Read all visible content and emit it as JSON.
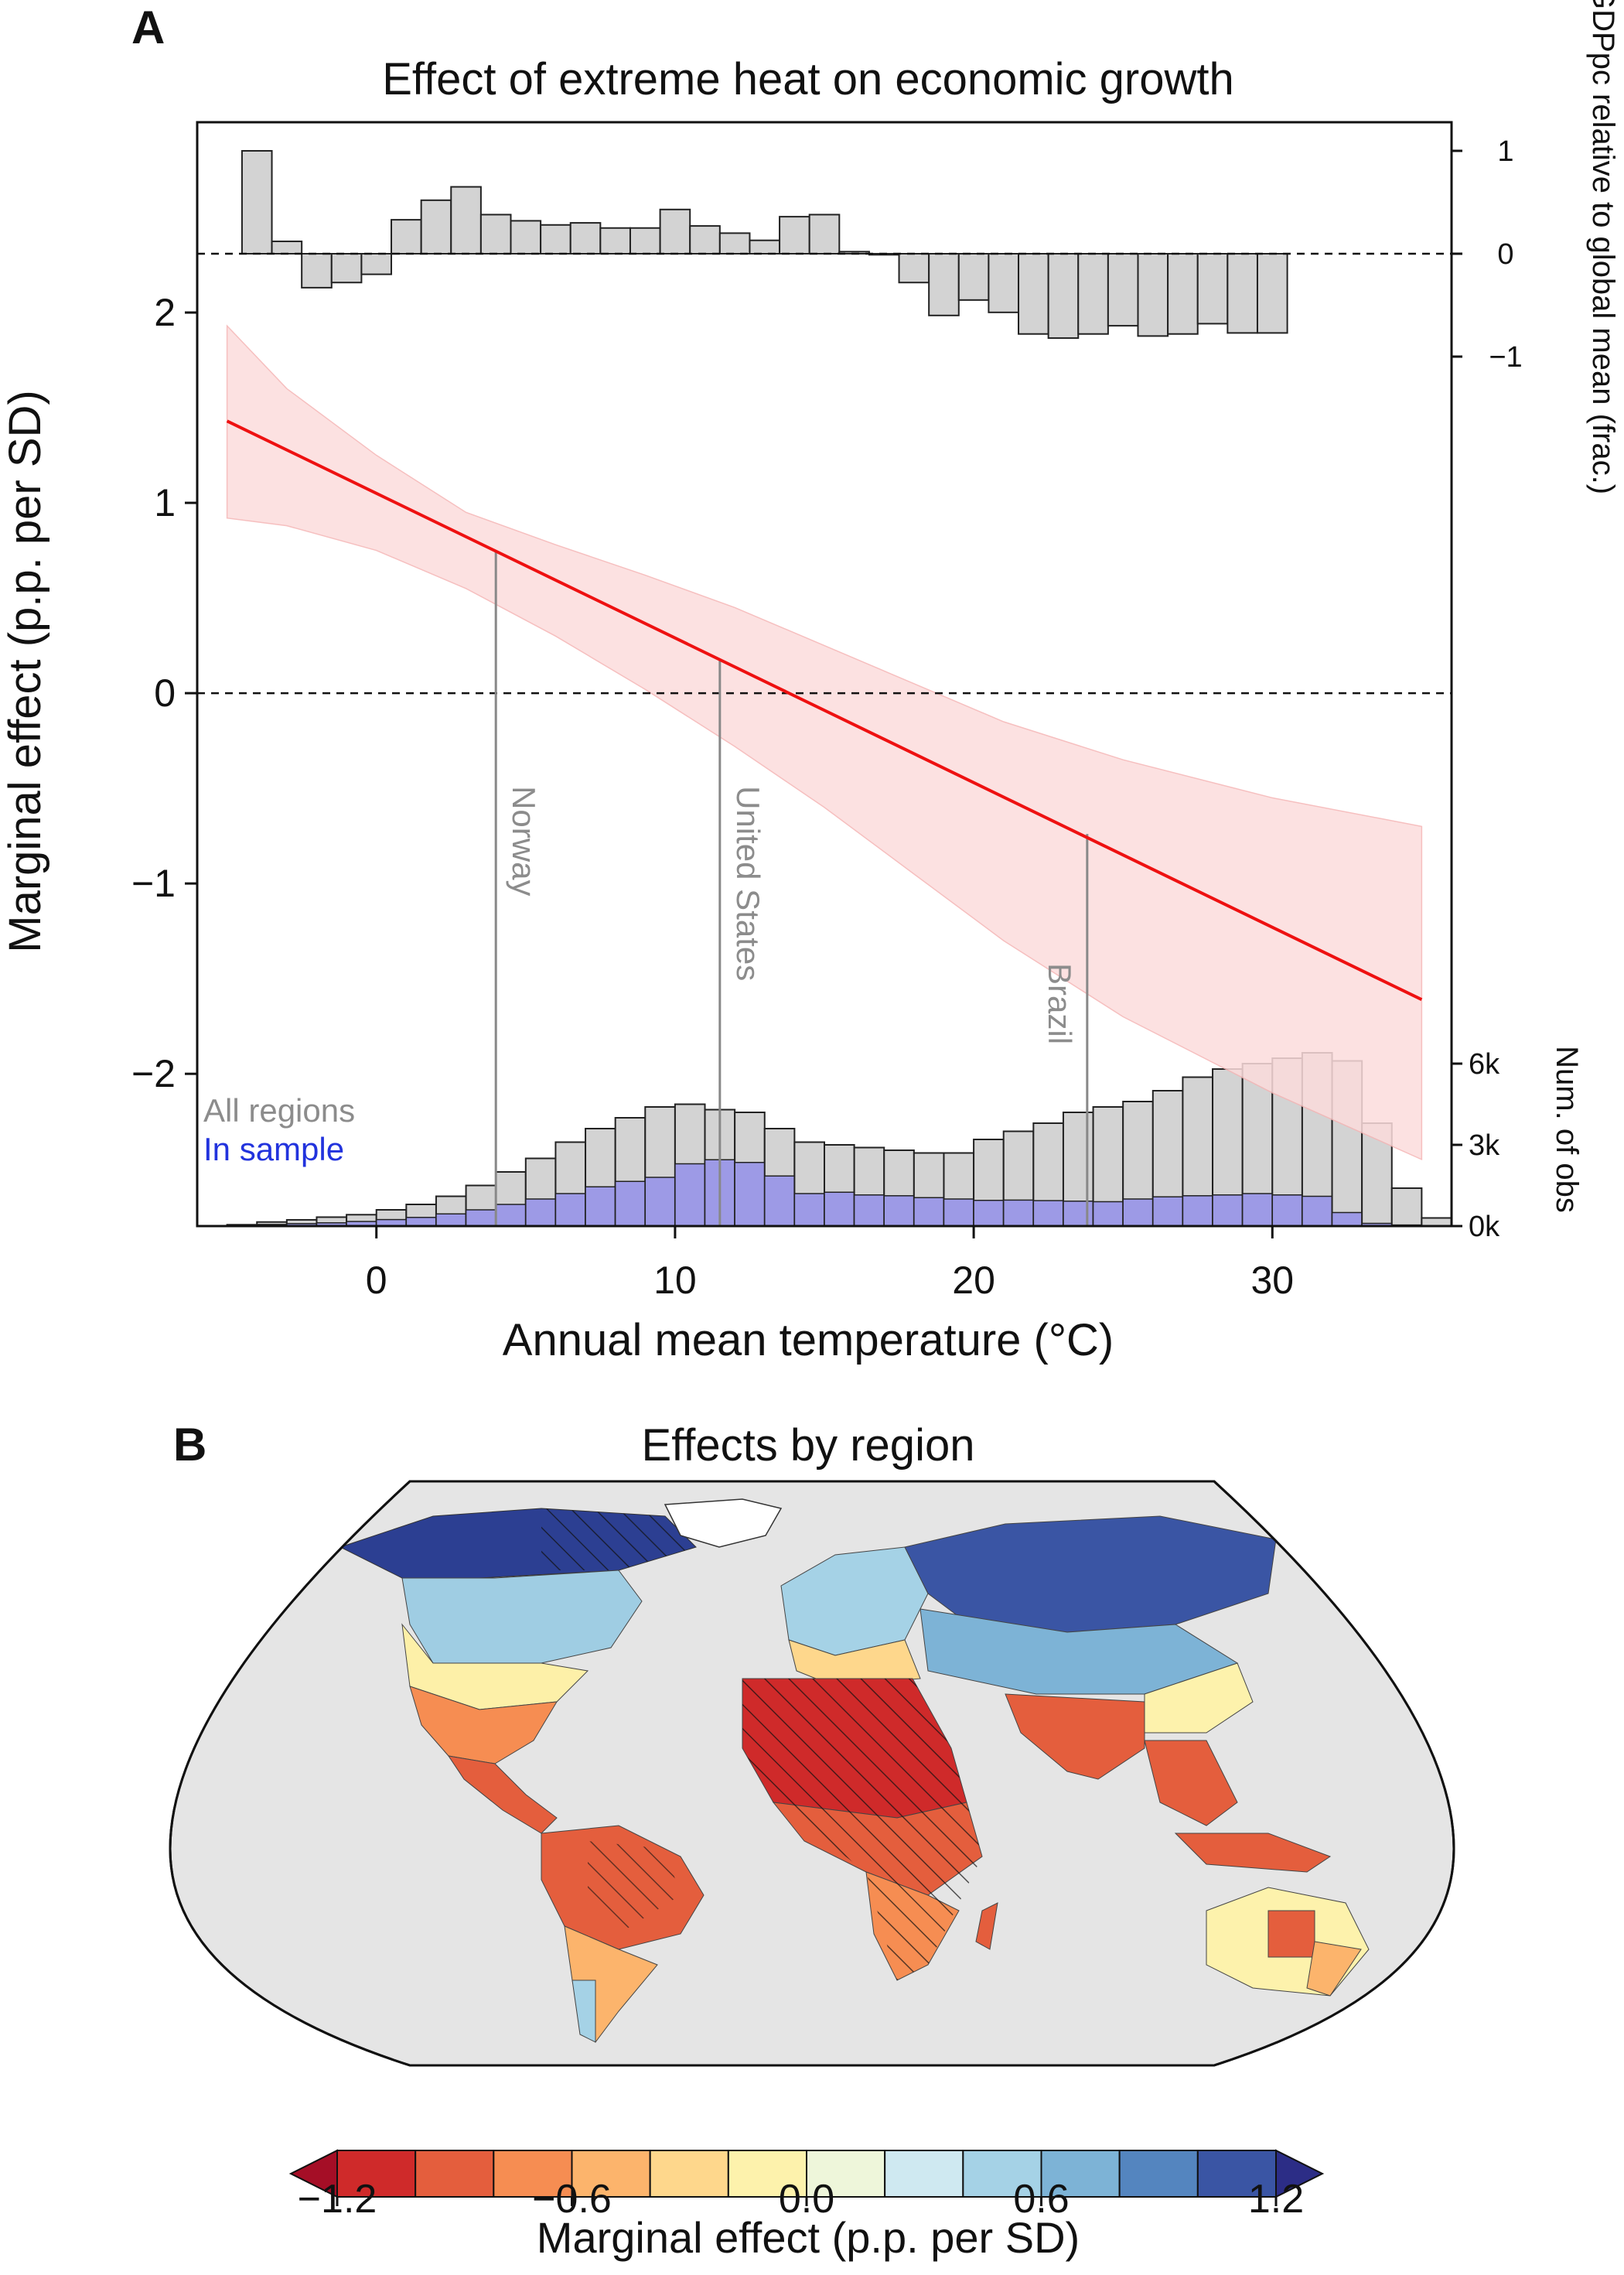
{
  "chart_data": [
    {
      "type": "line",
      "panel_label": "A",
      "title": "Effect of extreme heat on economic growth",
      "xlabel": "Annual mean temperature (°C)",
      "ylabel": "Marginal effect (p.p. per SD)",
      "xlim": [
        -6,
        36
      ],
      "ylim": [
        -2.8,
        3.0
      ],
      "x_ticks": [
        "0",
        "10",
        "20",
        "30"
      ],
      "y_ticks": [
        "−2",
        "−1",
        "0",
        "1",
        "2"
      ],
      "zero_line": true,
      "series": [
        {
          "name": "Marginal effect",
          "color": "#ee1111",
          "x": [
            -5,
            35
          ],
          "values": [
            1.43,
            -1.61
          ],
          "ci_upper": [
            1.93,
            1.6,
            1.25,
            0.95,
            0.78,
            0.62,
            0.45,
            0.25,
            0.05,
            -0.15,
            -0.35,
            -0.55,
            -0.7
          ],
          "ci_lower": [
            0.92,
            0.88,
            0.75,
            0.55,
            0.3,
            0.02,
            -0.28,
            -0.6,
            -0.95,
            -1.3,
            -1.7,
            -2.1,
            -2.45
          ],
          "ci_x": [
            -5,
            -3,
            0,
            3,
            6,
            9,
            12,
            15,
            18,
            21,
            25,
            30,
            35
          ],
          "ci_color": "#fcdcdc"
        }
      ],
      "country_markers": [
        {
          "name": "Norway",
          "x": 4.0,
          "y": 0.74
        },
        {
          "name": "United States",
          "x": 11.5,
          "y": 0.17
        },
        {
          "name": "Brazil",
          "x": 23.8,
          "y": -0.74
        }
      ],
      "top_histogram": {
        "label": "GDPpc relative to global mean (frac.)",
        "ylim": [
          -1.3,
          1.3
        ],
        "y_ticks": [
          "1",
          "0",
          "−1"
        ],
        "bin_edges_start": -4.5,
        "bin_width": 1,
        "values": [
          1.0,
          0.12,
          -0.33,
          -0.28,
          -0.2,
          0.33,
          0.52,
          0.65,
          0.38,
          0.32,
          0.28,
          0.3,
          0.25,
          0.25,
          0.43,
          0.27,
          0.2,
          0.13,
          0.36,
          0.38,
          0.02,
          -0.01,
          -0.28,
          -0.6,
          -0.45,
          -0.57,
          -0.78,
          -0.82,
          -0.78,
          -0.7,
          -0.8,
          -0.78,
          -0.68,
          -0.77,
          -0.77
        ],
        "color": "#d3d3d3"
      },
      "bottom_histogram": {
        "label": "Num. of obs",
        "y_ticks": [
          "6k",
          "3k",
          "0k"
        ],
        "ylim": [
          0,
          6000
        ],
        "bin_edges_start": -5,
        "bin_width": 1,
        "all_regions": [
          50,
          150,
          230,
          330,
          420,
          600,
          800,
          1100,
          1500,
          2000,
          2500,
          3100,
          3600,
          4000,
          4400,
          4500,
          4300,
          4200,
          3600,
          3100,
          3000,
          2900,
          2800,
          2700,
          2700,
          3200,
          3500,
          3800,
          4200,
          4400,
          4600,
          5000,
          5500,
          5800,
          6000,
          6200,
          6400,
          6100,
          3800,
          1400,
          300,
          80
        ],
        "in_sample": [
          20,
          60,
          90,
          120,
          170,
          240,
          320,
          450,
          600,
          800,
          1000,
          1200,
          1450,
          1650,
          1800,
          2300,
          2450,
          2350,
          1850,
          1200,
          1250,
          1150,
          1120,
          1050,
          1000,
          950,
          960,
          940,
          920,
          900,
          1000,
          1080,
          1120,
          1150,
          1200,
          1150,
          1100,
          500,
          100,
          40,
          10,
          0
        ],
        "legend": [
          "All regions",
          "In sample"
        ],
        "legend_colors": [
          "#8c8c8c",
          "#2233dd"
        ]
      }
    },
    {
      "type": "heatmap",
      "panel_label": "B",
      "title": "Effects by region",
      "colorbar": {
        "label": "Marginal effect (p.p. per SD)",
        "tick_labels": [
          "−1.2",
          "−0.6",
          "0.0",
          "0.6",
          "1.2"
        ],
        "range": [
          -1.2,
          1.2
        ],
        "colors": [
          "#a50e26",
          "#cf2a2a",
          "#e45e3d",
          "#f68d52",
          "#fcb46c",
          "#fed78c",
          "#fdf2ac",
          "#eef6da",
          "#cfe9f1",
          "#a5d2e6",
          "#7db3d6",
          "#5485bf",
          "#3a55a4",
          "#2c2d86"
        ]
      }
    }
  ]
}
